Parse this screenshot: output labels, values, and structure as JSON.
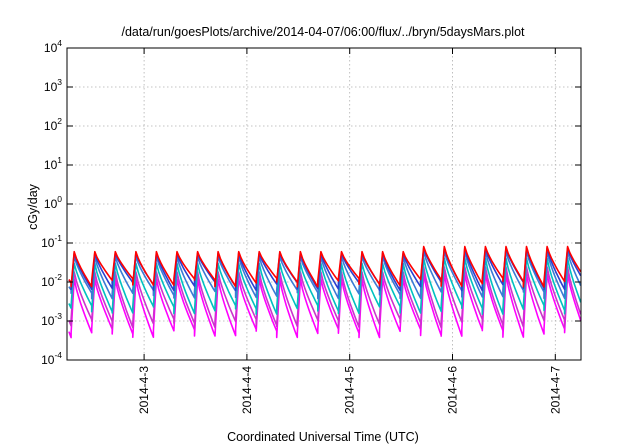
{
  "chart_data": {
    "type": "line",
    "title": "/data/run/goesPlots/archive/2014-04-07/06:00/flux/../bryn/5daysMars.plot",
    "xlabel": "Coordinated Universal Time (UTC)",
    "ylabel": "cGy/day",
    "yscale": "log",
    "ylim": [
      0.0001,
      10000
    ],
    "y_ticks": [
      {
        "base": "10",
        "exp": "-4",
        "value": 0.0001
      },
      {
        "base": "10",
        "exp": "-3",
        "value": 0.001
      },
      {
        "base": "10",
        "exp": "-2",
        "value": 0.01
      },
      {
        "base": "10",
        "exp": "-1",
        "value": 0.1
      },
      {
        "base": "10",
        "exp": "0",
        "value": 1
      },
      {
        "base": "10",
        "exp": "1",
        "value": 10
      },
      {
        "base": "10",
        "exp": "2",
        "value": 100
      },
      {
        "base": "10",
        "exp": "3",
        "value": 1000
      },
      {
        "base": "10",
        "exp": "4",
        "value": 10000
      }
    ],
    "x_range": [
      "2014-04-02 06:00",
      "2014-04-07 06:00"
    ],
    "x_ticks": [
      "2014-4-3",
      "2014-4-4",
      "2014-4-5",
      "2014-4-6",
      "2014-4-7"
    ],
    "grid": true,
    "cycles_per_day": 5,
    "series": [
      {
        "color": "#ff00ff",
        "peak": 0.012,
        "trough": 0.0005
      },
      {
        "color": "#cc33cc",
        "peak": 0.018,
        "trough": 0.0009
      },
      {
        "color": "#00c0c0",
        "peak": 0.03,
        "trough": 0.002
      },
      {
        "color": "#3a7bd5",
        "peak": 0.045,
        "trough": 0.005
      },
      {
        "color": "#2b3fd0",
        "peak": 0.055,
        "trough": 0.008
      },
      {
        "color": "#ff0000",
        "peak": 0.06,
        "trough": 0.01
      }
    ]
  }
}
